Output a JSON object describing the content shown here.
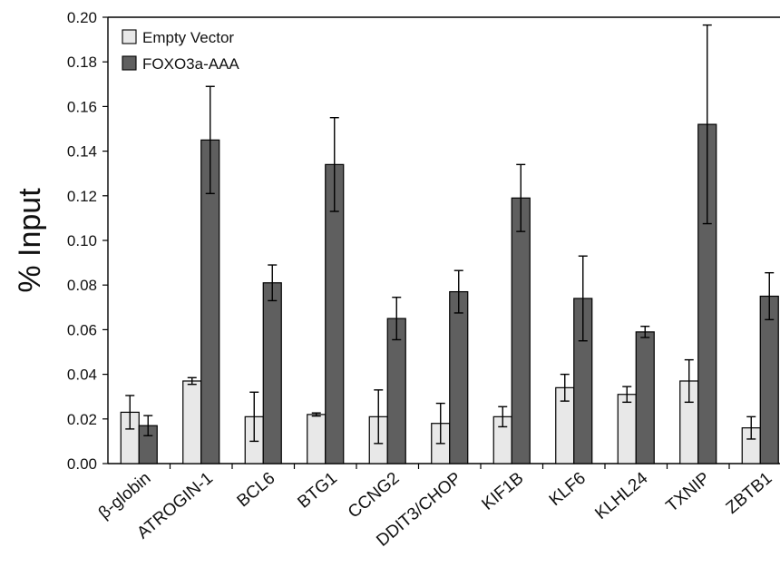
{
  "chart_data": {
    "type": "bar",
    "title": "",
    "xlabel": "",
    "ylabel": "% Input",
    "ylim": [
      0,
      0.2
    ],
    "yticks": [
      "0.00",
      "0.02",
      "0.04",
      "0.06",
      "0.08",
      "0.10",
      "0.12",
      "0.14",
      "0.16",
      "0.18",
      "0.20"
    ],
    "legend_position": "top-left",
    "grid": false,
    "categories": [
      "β-globin",
      "ATROGIN-1",
      "BCL6",
      "BTG1",
      "CCNG2",
      "DDIT3/CHOP",
      "KIF1B",
      "KLF6",
      "KLHL24",
      "TXNIP",
      "ZBTB1"
    ],
    "series": [
      {
        "name": "Empty Vector",
        "color": "#e8e8e8",
        "values": [
          0.023,
          0.037,
          0.021,
          0.022,
          0.021,
          0.018,
          0.021,
          0.034,
          0.031,
          0.037,
          0.016
        ],
        "errors": [
          0.0075,
          0.0015,
          0.011,
          0.0007,
          0.012,
          0.009,
          0.0045,
          0.006,
          0.0035,
          0.0095,
          0.005
        ]
      },
      {
        "name": "FOXO3a-AAA",
        "color": "#5f5f5f",
        "values": [
          0.017,
          0.145,
          0.081,
          0.134,
          0.065,
          0.077,
          0.119,
          0.074,
          0.059,
          0.152,
          0.075
        ],
        "errors": [
          0.0045,
          0.024,
          0.008,
          0.021,
          0.0095,
          0.0095,
          0.015,
          0.019,
          0.0025,
          0.0445,
          0.0105
        ]
      }
    ]
  }
}
